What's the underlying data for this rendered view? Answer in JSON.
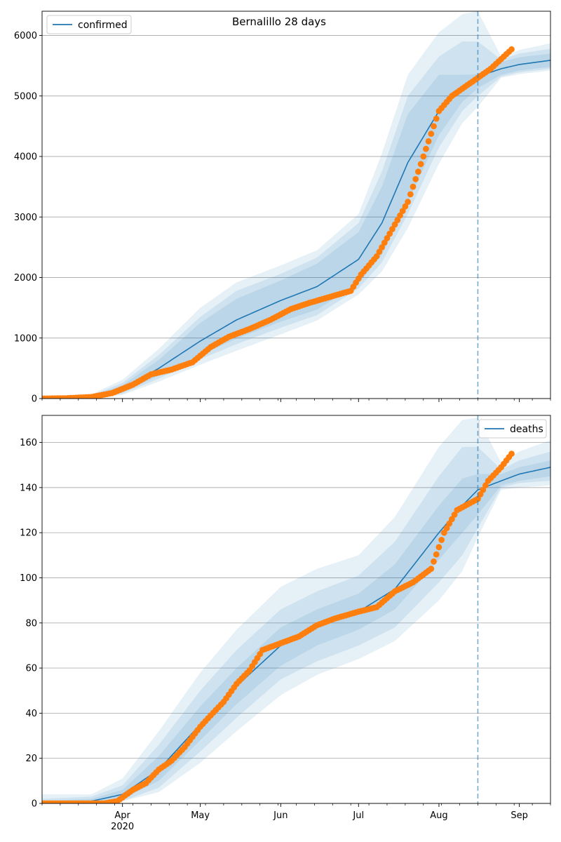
{
  "chart_data": [
    {
      "type": "line",
      "panel": "top",
      "title": "Bernalillo 28 days",
      "xlabel": "",
      "ylabel": "",
      "ylim": [
        0,
        6400
      ],
      "xlim": [
        "2020-03-01",
        "2020-09-13"
      ],
      "yticks": [
        0,
        1000,
        2000,
        3000,
        4000,
        5000,
        6000
      ],
      "xticks": [
        {
          "date": "2020-04-01",
          "label": "Apr",
          "sublabel": "2020"
        },
        {
          "date": "2020-05-01",
          "label": "May",
          "sublabel": ""
        },
        {
          "date": "2020-06-01",
          "label": "Jun",
          "sublabel": ""
        },
        {
          "date": "2020-07-01",
          "label": "Jul",
          "sublabel": ""
        },
        {
          "date": "2020-08-01",
          "label": "Aug",
          "sublabel": ""
        },
        {
          "date": "2020-09-01",
          "label": "Sep",
          "sublabel": ""
        }
      ],
      "grid": "y",
      "legend": {
        "placement": "top-left",
        "entries": [
          "confirmed"
        ]
      },
      "forecast_start": "2020-08-16",
      "colors": {
        "model": "#1f77b4",
        "observed": "#ff7f0e",
        "band": "#1f77b4",
        "grid": "#b0b0b0"
      },
      "series": [
        {
          "name": "confirmed",
          "role": "model",
          "x": [
            "2020-03-01",
            "2020-03-20",
            "2020-04-01",
            "2020-04-15",
            "2020-05-01",
            "2020-05-15",
            "2020-06-01",
            "2020-06-15",
            "2020-07-01",
            "2020-07-10",
            "2020-07-20",
            "2020-08-01",
            "2020-08-10",
            "2020-08-16",
            "2020-08-25",
            "2020-09-01",
            "2020-09-13"
          ],
          "y": [
            0,
            20,
            150,
            500,
            950,
            1300,
            1620,
            1850,
            2300,
            2900,
            3900,
            4750,
            5150,
            5320,
            5450,
            5520,
            5590
          ],
          "bands": [
            {
              "lower": [
                0,
                5,
                100,
                380,
                720,
                990,
                1270,
                1470,
                1900,
                2380,
                3250,
                4350,
                4900,
                5130,
                5350,
                5420,
                5480
              ],
              "upper": [
                15,
                40,
                220,
                640,
                1250,
                1650,
                1950,
                2230,
                2750,
                3500,
                4700,
                5350,
                5350,
                5360,
                5560,
                5640,
                5700
              ]
            },
            {
              "lower": [
                0,
                3,
                80,
                330,
                650,
                900,
                1170,
                1380,
                1820,
                2250,
                3050,
                4150,
                4750,
                5000,
                5320,
                5390,
                5450
              ],
              "upper": [
                25,
                50,
                260,
                720,
                1350,
                1780,
                2060,
                2330,
                2900,
                3750,
                5000,
                5650,
                5900,
                5900,
                5600,
                5700,
                5780
              ]
            },
            {
              "lower": [
                0,
                2,
                60,
                280,
                560,
                790,
                1060,
                1290,
                1720,
                2100,
                2820,
                3880,
                4550,
                4820,
                5300,
                5360,
                5420
              ],
              "upper": [
                35,
                70,
                310,
                820,
                1500,
                1920,
                2200,
                2450,
                3050,
                4050,
                5350,
                6050,
                6350,
                6400,
                5650,
                5760,
                5870
              ]
            }
          ]
        },
        {
          "name": "",
          "role": "observed",
          "x": [
            "2020-03-01",
            "2020-03-10",
            "2020-03-20",
            "2020-03-28",
            "2020-04-05",
            "2020-04-12",
            "2020-04-20",
            "2020-04-28",
            "2020-05-05",
            "2020-05-12",
            "2020-05-20",
            "2020-05-28",
            "2020-06-05",
            "2020-06-12",
            "2020-06-20",
            "2020-06-28",
            "2020-07-02",
            "2020-07-08",
            "2020-07-14",
            "2020-07-20",
            "2020-07-26",
            "2020-08-01",
            "2020-08-06",
            "2020-08-11",
            "2020-08-16",
            "2020-08-21",
            "2020-08-26",
            "2020-08-29"
          ],
          "y": [
            0,
            5,
            25,
            90,
            230,
            400,
            480,
            600,
            850,
            1020,
            1150,
            1300,
            1480,
            1580,
            1680,
            1780,
            2050,
            2350,
            2800,
            3250,
            4000,
            4750,
            5000,
            5150,
            5300,
            5450,
            5650,
            5770
          ]
        }
      ]
    },
    {
      "type": "line",
      "panel": "bottom",
      "title": "",
      "xlabel": "",
      "ylabel": "",
      "ylim": [
        0,
        172
      ],
      "xlim": [
        "2020-03-01",
        "2020-09-13"
      ],
      "yticks": [
        0,
        20,
        40,
        60,
        80,
        100,
        120,
        140,
        160
      ],
      "xticks": [
        {
          "date": "2020-04-01",
          "label": "Apr",
          "sublabel": "2020"
        },
        {
          "date": "2020-05-01",
          "label": "May",
          "sublabel": ""
        },
        {
          "date": "2020-06-01",
          "label": "Jun",
          "sublabel": ""
        },
        {
          "date": "2020-07-01",
          "label": "Jul",
          "sublabel": ""
        },
        {
          "date": "2020-08-01",
          "label": "Aug",
          "sublabel": ""
        },
        {
          "date": "2020-09-01",
          "label": "Sep",
          "sublabel": ""
        }
      ],
      "grid": "y",
      "legend": {
        "placement": "top-right",
        "entries": [
          "deaths"
        ]
      },
      "forecast_start": "2020-08-16",
      "colors": {
        "model": "#1f77b4",
        "observed": "#ff7f0e",
        "band": "#1f77b4",
        "grid": "#b0b0b0"
      },
      "series": [
        {
          "name": "deaths",
          "role": "model",
          "x": [
            "2020-03-01",
            "2020-03-20",
            "2020-04-01",
            "2020-04-15",
            "2020-05-01",
            "2020-05-15",
            "2020-06-01",
            "2020-06-15",
            "2020-07-01",
            "2020-07-15",
            "2020-08-01",
            "2020-08-10",
            "2020-08-16",
            "2020-08-25",
            "2020-09-01",
            "2020-09-13"
          ],
          "y": [
            0,
            1,
            4,
            15,
            35,
            52,
            70,
            78,
            85,
            95,
            120,
            132,
            139,
            143,
            146,
            149
          ],
          "bands": [
            {
              "lower": [
                0,
                0,
                2,
                10,
                28,
                44,
                61,
                70,
                77,
                86,
                108,
                120,
                128,
                141,
                143,
                145
              ],
              "upper": [
                1,
                2,
                6,
                21,
                43,
                60,
                78,
                86,
                93,
                106,
                132,
                144,
                146,
                146,
                149,
                152
              ]
            },
            {
              "lower": [
                0,
                0,
                1,
                7,
                23,
                38,
                55,
                63,
                70,
                78,
                98,
                110,
                122,
                140,
                142,
                143
              ],
              "upper": [
                2,
                3,
                8,
                26,
                50,
                68,
                86,
                94,
                101,
                116,
                145,
                158,
                158,
                148,
                152,
                156
              ]
            },
            {
              "lower": [
                0,
                0,
                1,
                5,
                18,
                32,
                48,
                57,
                64,
                72,
                90,
                103,
                118,
                139,
                140,
                141
              ],
              "upper": [
                4,
                4,
                11,
                32,
                58,
                77,
                96,
                104,
                110,
                127,
                158,
                170,
                171,
                151,
                156,
                161
              ]
            }
          ]
        },
        {
          "name": "",
          "role": "observed",
          "x": [
            "2020-03-01",
            "2020-03-15",
            "2020-03-25",
            "2020-03-30",
            "2020-04-05",
            "2020-04-10",
            "2020-04-15",
            "2020-04-20",
            "2020-04-25",
            "2020-05-01",
            "2020-05-05",
            "2020-05-10",
            "2020-05-15",
            "2020-05-20",
            "2020-05-25",
            "2020-06-01",
            "2020-06-08",
            "2020-06-15",
            "2020-06-22",
            "2020-07-01",
            "2020-07-08",
            "2020-07-15",
            "2020-07-22",
            "2020-07-29",
            "2020-08-03",
            "2020-08-08",
            "2020-08-16",
            "2020-08-20",
            "2020-08-25",
            "2020-08-29"
          ],
          "y": [
            0,
            0,
            0,
            1,
            6,
            9,
            15,
            19,
            25,
            34,
            39,
            45,
            53,
            59,
            68,
            71,
            74,
            79,
            82,
            85,
            87,
            94,
            98,
            104,
            120,
            130,
            135,
            143,
            149,
            155
          ]
        }
      ]
    }
  ]
}
